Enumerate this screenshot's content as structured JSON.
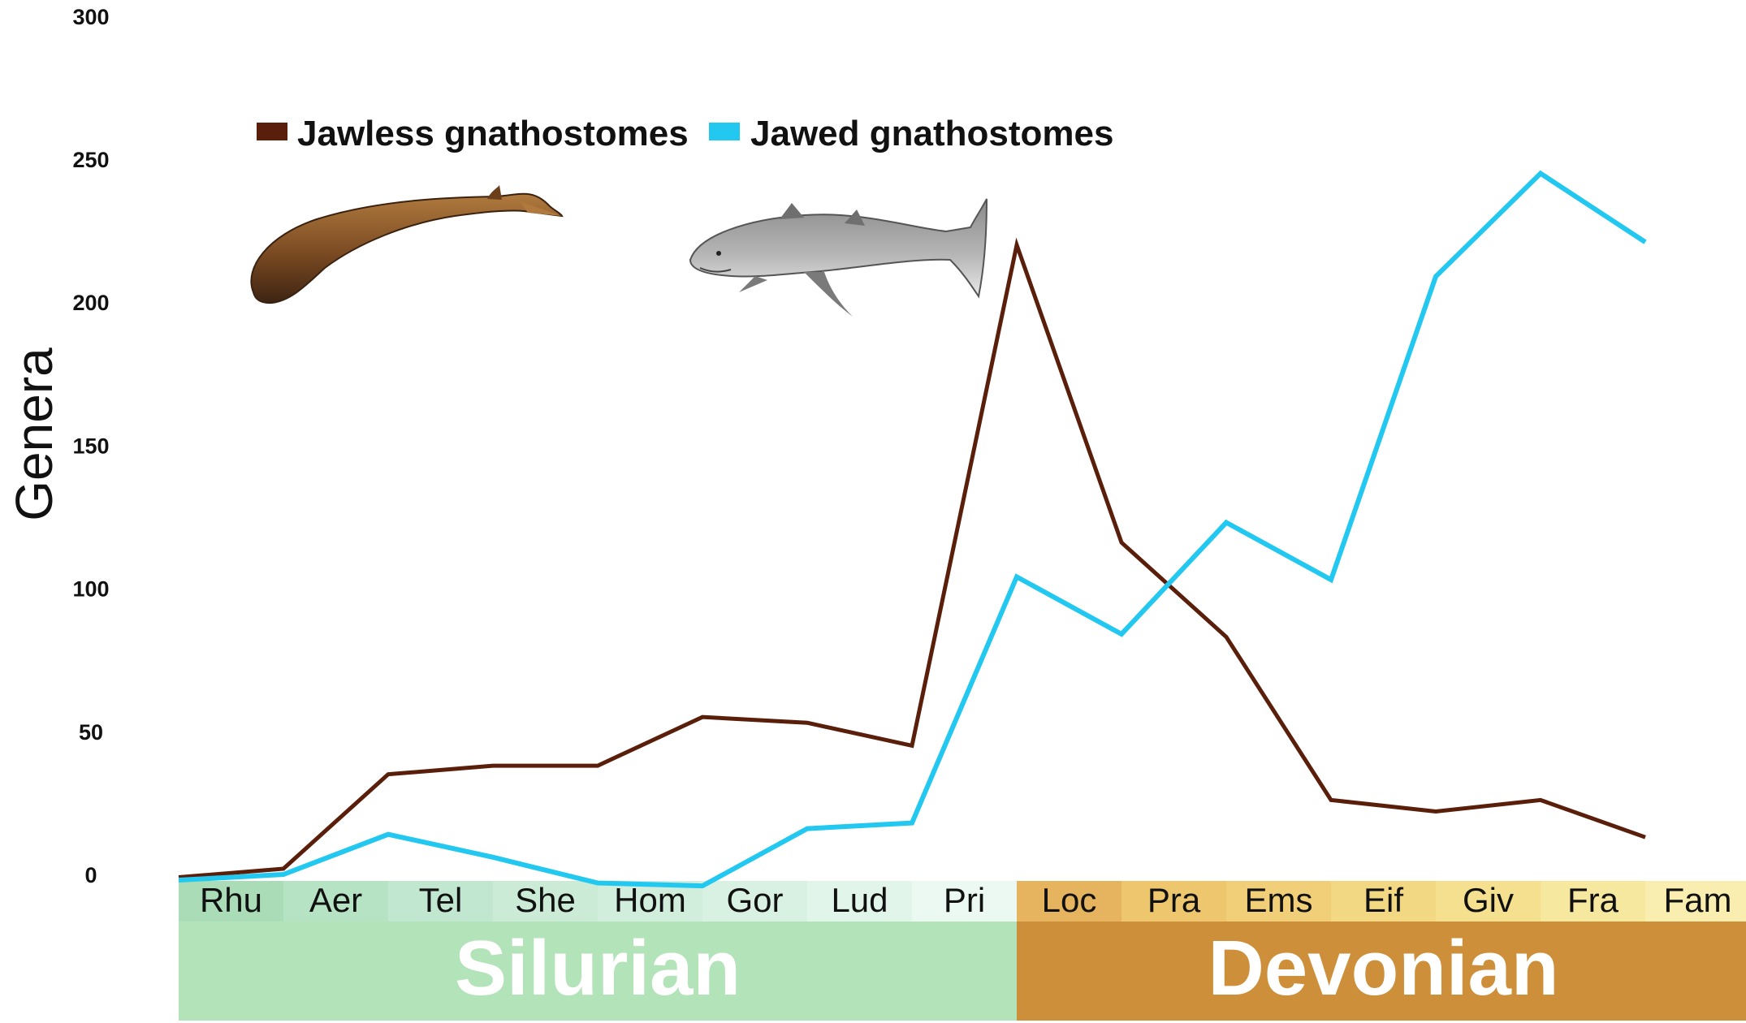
{
  "chart_data": {
    "type": "line",
    "xlabel": "",
    "ylabel": "Genera",
    "ylim": [
      0,
      300
    ],
    "yticks": [
      0,
      50,
      100,
      150,
      200,
      250,
      300
    ],
    "categories": [
      "Rhu",
      "Aer",
      "Tel",
      "She",
      "Hom",
      "Gor",
      "Lud",
      "Pri",
      "Loc",
      "Pra",
      "Ems",
      "Eif",
      "Giv",
      "Fra",
      "Fam"
    ],
    "series": [
      {
        "name": "Jawless gnathostomes",
        "color": "#5a1f0a",
        "values": [
          -1,
          2,
          35,
          38,
          38,
          55,
          53,
          45,
          220,
          116,
          83,
          26,
          22,
          26,
          13
        ]
      },
      {
        "name": "Jawed gnathostomes",
        "color": "#22c8f0",
        "values": [
          -2,
          0,
          14,
          6,
          -3,
          -4,
          16,
          18,
          104,
          84,
          123,
          103,
          209,
          245,
          221
        ]
      }
    ],
    "periods": [
      {
        "name": "Silurian",
        "from": 0,
        "to": 7,
        "color": "#b3e3b8"
      },
      {
        "name": "Devonian",
        "from": 8,
        "to": 14,
        "color": "#cd8f3a"
      }
    ],
    "stage_colors": [
      "#a9dcb7",
      "#b6e3c4",
      "#c2e7d0",
      "#cbebd6",
      "#d0eedb",
      "#d9f1e2",
      "#e2f5ea",
      "#ecf9f2",
      "#e6b45f",
      "#edc66e",
      "#f0cf78",
      "#f2d882",
      "#f5e08f",
      "#f7e89f",
      "#f9eeb0"
    ],
    "legend_position": "top-left",
    "grid": false,
    "images": [
      {
        "name": "jawless-fish-illustration"
      },
      {
        "name": "shark-illustration"
      }
    ]
  }
}
